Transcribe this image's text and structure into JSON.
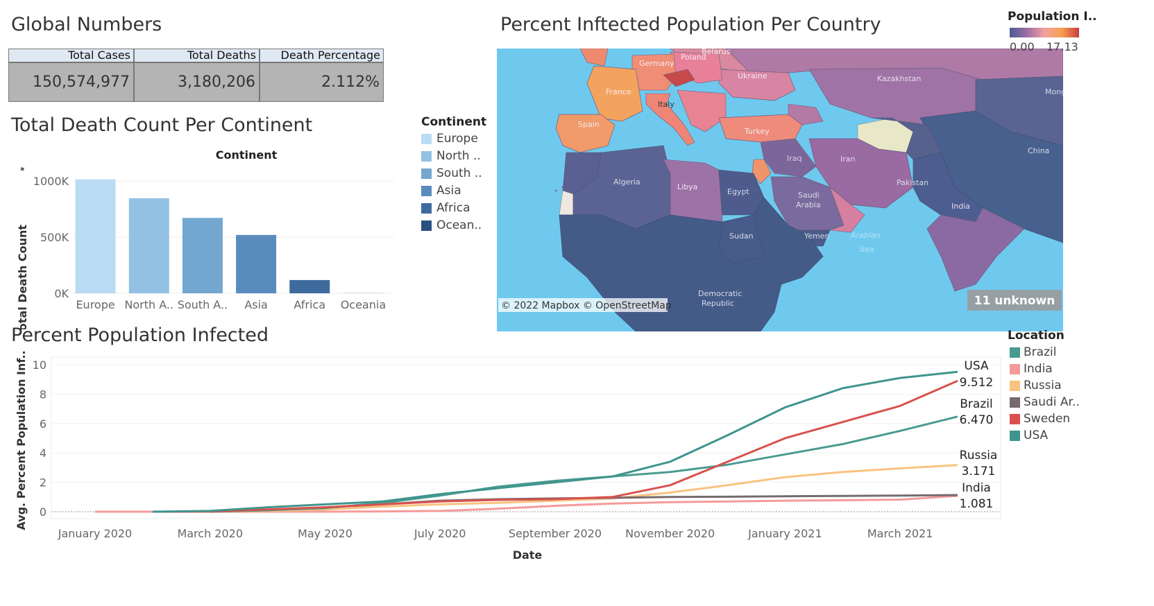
{
  "global": {
    "title": "Global Numbers",
    "headers": [
      "Total Cases",
      "Total Deaths",
      "Death Percentage"
    ],
    "values": [
      "150,574,977",
      "3,180,206",
      "2.112%"
    ]
  },
  "continent_chart": {
    "title": "Total Death Count Per Continent",
    "header": "Continent",
    "legend_title": "Continent",
    "legend": [
      "Europe",
      "North ..",
      "South ..",
      "Asia",
      "Africa",
      "Ocean.."
    ],
    "colors": [
      "#b9dcf2",
      "#93c1e3",
      "#73a7d0",
      "#5a8bbf",
      "#3e6b9e",
      "#2a5080"
    ]
  },
  "map": {
    "title": "Percent Inftected Population Per Country",
    "legend_title": "Population I..",
    "legend_min": "0.00",
    "legend_max": "17.13",
    "attribution": "© 2022 Mapbox © OpenStreetMap",
    "unknown": "11 unknown",
    "labels": [
      "Belarus",
      "Poland",
      "Germany",
      "Ukraine",
      "Kazakhstan",
      "France",
      "Spain",
      "Italy",
      "Turkey",
      "Iraq",
      "Iran",
      "Algeria",
      "Libya",
      "Egypt",
      "Saudi",
      "Arabia",
      "Pakistan",
      "China",
      "India",
      "Sudan",
      "Yemen",
      "Arabian",
      "Sea",
      "Democratic",
      "Republic",
      "Mong"
    ]
  },
  "line_chart": {
    "title": "Percent Population Infected",
    "legend_title": "Location",
    "legend": [
      "Brazil",
      "India",
      "Russia",
      "Saudi Ar..",
      "Sweden",
      "USA"
    ],
    "colors": [
      "#4a9a91",
      "#f59a9a",
      "#f9c27f",
      "#756b6c",
      "#d8514d",
      "#3f958d"
    ],
    "end_labels": [
      {
        "name": "USA",
        "value": "9.512"
      },
      {
        "name": "Brazil",
        "value": "6.470"
      },
      {
        "name": "Russia",
        "value": "3.171"
      },
      {
        "name": "India",
        "value": "1.081"
      }
    ]
  },
  "chart_data": [
    {
      "type": "bar",
      "title": "Total Death Count Per Continent",
      "xlabel": "Continent",
      "ylabel": "Total Death Count",
      "categories": [
        "Europe",
        "North A..",
        "South A..",
        "Asia",
        "Africa",
        "Oceania"
      ],
      "values": [
        1016000,
        847000,
        672000,
        520000,
        118000,
        1000
      ],
      "ylim": [
        0,
        1100000
      ],
      "yticks": [
        "0K",
        "500K",
        "1000K"
      ],
      "grid": true
    },
    {
      "type": "line",
      "title": "Percent Population Infected",
      "xlabel": "Date",
      "ylabel": "Avg. Percent Population Inf..",
      "ylim": [
        0,
        10.5
      ],
      "yticks": [
        "0",
        "2",
        "4",
        "6",
        "8",
        "10"
      ],
      "xticks": [
        "January 2020",
        "March 2020",
        "May 2020",
        "July 2020",
        "September 2020",
        "November 2020",
        "January 2021",
        "March 2021"
      ],
      "x": [
        "2020-01",
        "2020-02",
        "2020-03",
        "2020-04",
        "2020-05",
        "2020-06",
        "2020-07",
        "2020-08",
        "2020-09",
        "2020-10",
        "2020-11",
        "2020-12",
        "2021-01",
        "2021-02",
        "2021-03",
        "2021-04"
      ],
      "series": [
        {
          "name": "USA",
          "values": [
            null,
            0.0,
            0.05,
            0.3,
            0.5,
            0.7,
            1.2,
            1.6,
            2.0,
            2.4,
            3.4,
            5.2,
            7.1,
            8.4,
            9.1,
            9.512
          ]
        },
        {
          "name": "Brazil",
          "values": [
            null,
            null,
            0.02,
            0.1,
            0.25,
            0.6,
            1.1,
            1.7,
            2.1,
            2.4,
            2.7,
            3.2,
            3.9,
            4.6,
            5.5,
            6.47
          ]
        },
        {
          "name": "Sweden",
          "values": [
            null,
            0.0,
            0.02,
            0.15,
            0.3,
            0.5,
            0.7,
            0.8,
            0.85,
            1.0,
            1.8,
            3.4,
            5.0,
            6.1,
            7.2,
            8.9
          ]
        },
        {
          "name": "Russia",
          "values": [
            null,
            null,
            0.0,
            0.05,
            0.15,
            0.35,
            0.5,
            0.6,
            0.75,
            0.9,
            1.3,
            1.8,
            2.35,
            2.7,
            2.95,
            3.171
          ]
        },
        {
          "name": "Saudi Ar..",
          "values": [
            null,
            null,
            0.0,
            0.1,
            0.3,
            0.5,
            0.75,
            0.85,
            0.9,
            0.95,
            1.0,
            1.02,
            1.05,
            1.07,
            1.1,
            1.13
          ]
        },
        {
          "name": "India",
          "values": [
            0.0,
            0.0,
            0.0,
            0.0,
            0.0,
            0.02,
            0.05,
            0.2,
            0.4,
            0.55,
            0.65,
            0.7,
            0.75,
            0.78,
            0.82,
            1.081
          ]
        }
      ]
    }
  ]
}
